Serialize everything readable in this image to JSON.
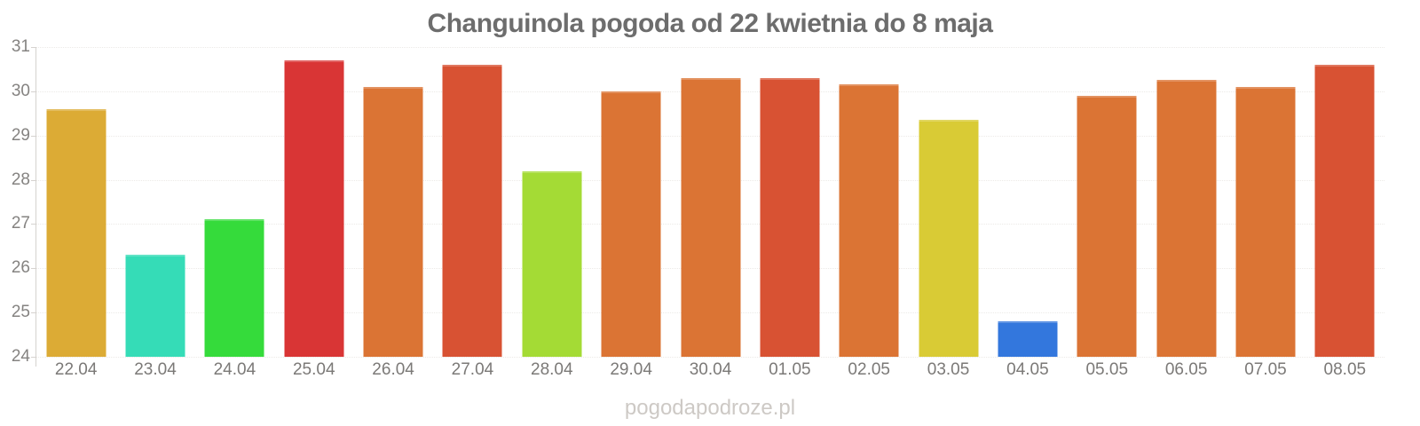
{
  "header": {
    "title": "Changuinola pogoda od 22 kwietnia do 8 maja",
    "title_color": "#6d6d6d"
  },
  "watermark": {
    "text": "pogodapodroze.pl",
    "color": "#cdc9c5"
  },
  "axes": {
    "y_ticks": [
      31,
      30,
      29,
      28,
      27,
      26,
      25,
      24
    ],
    "label_color": "#858381",
    "grid_color": "#eceae7",
    "axis_line_color": "#d5d2cf"
  },
  "chart_data": {
    "type": "bar",
    "title": "Changuinola pogoda od 22 kwietnia do 8 maja",
    "categories": [
      "22.04",
      "23.04",
      "24.04",
      "25.04",
      "26.04",
      "27.04",
      "28.04",
      "29.04",
      "30.04",
      "01.05",
      "02.05",
      "03.05",
      "04.05",
      "05.05",
      "06.05",
      "07.05",
      "08.05"
    ],
    "values": [
      29.6,
      26.3,
      27.1,
      30.7,
      30.1,
      30.6,
      28.2,
      30.0,
      30.3,
      30.3,
      30.15,
      29.35,
      24.8,
      29.9,
      30.25,
      30.1,
      30.6
    ],
    "bar_colors": [
      "#DCAB35",
      "#35DCB7",
      "#35DB3B",
      "#D93535",
      "#DB7434",
      "#D85233",
      "#A4DB35",
      "#DB7434",
      "#DB7434",
      "#D85233",
      "#DB7434",
      "#D9CB35",
      "#3377DD",
      "#DB7434",
      "#DB7434",
      "#DB7434",
      "#D85233"
    ],
    "xlabel": "",
    "ylabel": "",
    "ylim": [
      24,
      31
    ],
    "grid": true,
    "legend": false
  }
}
